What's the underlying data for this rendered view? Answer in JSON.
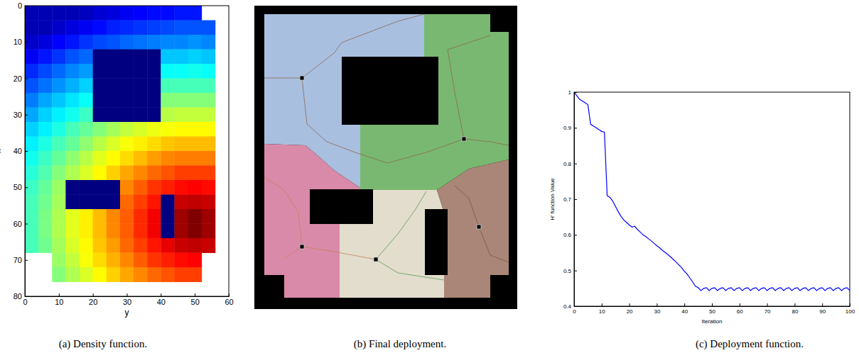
{
  "chart_data": [
    {
      "type": "heatmap",
      "title": "(a) Density function.",
      "xlabel": "y",
      "ylabel": "x",
      "xlim": [
        0,
        60
      ],
      "ylim": [
        0,
        80
      ],
      "xticks": [
        0,
        10,
        20,
        30,
        40,
        50,
        60
      ],
      "yticks": [
        0,
        10,
        20,
        30,
        40,
        50,
        60,
        70,
        80
      ],
      "x": [
        0,
        4,
        8,
        12,
        16,
        20,
        24,
        28,
        32,
        36,
        40,
        44,
        48,
        52,
        56
      ],
      "y": [
        0,
        4,
        8,
        12,
        16,
        20,
        24,
        28,
        32,
        36,
        40,
        44,
        48,
        52,
        56,
        60,
        64,
        68,
        72,
        76
      ],
      "cells": [
        [
          0.05,
          0.05,
          0.05,
          0.05,
          0.06,
          0.08,
          0.09,
          0.11,
          0.12,
          0.13,
          0.13,
          0.14,
          0.14,
          null
        ],
        [
          0.05,
          0.05,
          0.07,
          0.09,
          0.11,
          0.13,
          0.15,
          0.16,
          0.17,
          0.18,
          0.19,
          0.2,
          0.2,
          0.2
        ],
        [
          0.07,
          0.09,
          0.12,
          0.14,
          0.17,
          0.19,
          0.2,
          0.22,
          0.23,
          0.24,
          0.25,
          0.25,
          0.26,
          0.25
        ],
        [
          0.11,
          0.14,
          0.17,
          0.2,
          0.22,
          0,
          0,
          0,
          0,
          0,
          0.31,
          0.31,
          0.32,
          0.31
        ],
        [
          0.16,
          0.19,
          0.22,
          0.25,
          0.27,
          0,
          0,
          0,
          0,
          0,
          0.37,
          0.37,
          0.38,
          0.37
        ],
        [
          0.2,
          0.23,
          0.26,
          0.29,
          0.32,
          0,
          0,
          0,
          0,
          0,
          0.43,
          0.43,
          0.43,
          0.43
        ],
        [
          0.24,
          0.28,
          0.31,
          0.34,
          0.37,
          0,
          0,
          0,
          0,
          0,
          0.49,
          0.49,
          0.49,
          0.49
        ],
        [
          0.28,
          0.32,
          0.35,
          0.38,
          0.42,
          0,
          0,
          0,
          0,
          0,
          0.54,
          0.55,
          0.55,
          0.55
        ],
        [
          0.32,
          0.35,
          0.39,
          0.43,
          0.46,
          0.49,
          0.52,
          0.55,
          0.57,
          0.59,
          0.6,
          0.61,
          0.61,
          0.61
        ],
        [
          0.35,
          0.39,
          0.43,
          0.46,
          0.5,
          0.54,
          0.57,
          0.6,
          0.62,
          0.64,
          0.66,
          0.67,
          0.67,
          0.67
        ],
        [
          0.38,
          0.42,
          0.46,
          0.5,
          0.54,
          0.58,
          0.61,
          0.64,
          0.67,
          0.7,
          0.72,
          0.73,
          0.73,
          0.73
        ],
        [
          0.4,
          0.44,
          0.49,
          0.53,
          0.57,
          0.61,
          0.65,
          0.69,
          0.72,
          0.75,
          0.77,
          0.79,
          0.79,
          0.79
        ],
        [
          0.42,
          0.46,
          0.51,
          0,
          0,
          0,
          0,
          0.72,
          0.76,
          0.8,
          0.82,
          0.84,
          0.85,
          0.84
        ],
        [
          0.43,
          0.47,
          0.52,
          0,
          0,
          0,
          0,
          0.75,
          0.79,
          0.83,
          0,
          0.9,
          0.91,
          0.9
        ],
        [
          0.43,
          0.48,
          0.53,
          0.58,
          0.62,
          0.67,
          0.72,
          0.76,
          0.81,
          0.86,
          0,
          0.94,
          0.97,
          0.94
        ],
        [
          0.43,
          0.48,
          0.53,
          0.58,
          0.62,
          0.67,
          0.72,
          0.76,
          0.81,
          0.86,
          0,
          0.94,
          0.97,
          0.94
        ],
        [
          0.43,
          0.47,
          0.52,
          0.57,
          0.61,
          0.66,
          0.7,
          0.75,
          0.79,
          0.83,
          0.87,
          0.9,
          0.91,
          0.9
        ],
        [
          null,
          null,
          0.51,
          0.55,
          0.6,
          0.64,
          0.68,
          0.72,
          0.76,
          0.8,
          0.82,
          0.84,
          0.85,
          null
        ],
        [
          null,
          null,
          0.49,
          0.53,
          0.57,
          0.61,
          0.65,
          0.69,
          0.72,
          0.75,
          0.77,
          0.79,
          0.79,
          null
        ]
      ]
    },
    {
      "type": "map",
      "title": "(b) Final deployment."
    },
    {
      "type": "line",
      "title": "(c) Deployment function.",
      "xlabel": "Iteration",
      "ylabel": "H' function Value",
      "xlim": [
        0,
        100
      ],
      "ylim": [
        0.4,
        1
      ],
      "xticks": [
        0,
        10,
        20,
        30,
        40,
        50,
        60,
        70,
        80,
        90,
        100
      ],
      "yticks": [
        0.4,
        0.5,
        0.6,
        0.7,
        0.8,
        0.9,
        1
      ],
      "color": "#0000ff",
      "x": [
        0,
        1,
        2,
        3,
        4,
        5,
        6,
        7,
        8,
        9,
        10,
        11,
        12,
        13,
        14,
        15,
        16,
        17,
        18,
        19,
        20,
        21,
        22,
        23,
        24,
        25,
        26,
        27,
        28,
        29,
        30,
        31,
        32,
        33,
        34,
        35,
        36,
        37,
        38,
        39,
        40,
        41,
        42,
        43,
        44,
        45,
        46,
        47,
        48,
        49,
        50,
        51,
        52,
        53,
        54,
        55,
        56,
        57,
        58,
        59,
        60,
        61,
        62,
        63,
        64,
        65,
        66,
        67,
        68,
        69,
        70,
        71,
        72,
        73,
        74,
        75,
        76,
        77,
        78,
        79,
        80,
        81,
        82,
        83,
        84,
        85,
        86,
        87,
        88,
        89,
        90,
        91,
        92,
        93,
        94,
        95,
        96,
        97,
        98,
        99,
        100
      ],
      "values": [
        1,
        0.99,
        0.98,
        0.975,
        0.97,
        0.965,
        0.91,
        0.905,
        0.9,
        0.895,
        0.89,
        0.888,
        0.71,
        0.705,
        0.695,
        0.68,
        0.665,
        0.652,
        0.642,
        0.635,
        0.628,
        0.622,
        0.624,
        0.615,
        0.608,
        0.6,
        0.595,
        0.589,
        0.583,
        0.576,
        0.57,
        0.564,
        0.557,
        0.551,
        0.545,
        0.538,
        0.531,
        0.524,
        0.516,
        0.508,
        0.498,
        0.49,
        0.479,
        0.468,
        0.456,
        0.452,
        0.444,
        0.45,
        0.452,
        0.444,
        0.45,
        0.452,
        0.444,
        0.45,
        0.452,
        0.444,
        0.45,
        0.452,
        0.444,
        0.45,
        0.452,
        0.444,
        0.45,
        0.452,
        0.444,
        0.45,
        0.452,
        0.444,
        0.45,
        0.452,
        0.444,
        0.45,
        0.452,
        0.444,
        0.45,
        0.452,
        0.444,
        0.45,
        0.452,
        0.444,
        0.45,
        0.452,
        0.444,
        0.45,
        0.452,
        0.444,
        0.45,
        0.452,
        0.444,
        0.45,
        0.452,
        0.444,
        0.45,
        0.452,
        0.444,
        0.45,
        0.452,
        0.444,
        0.45,
        0.452,
        0.444
      ]
    }
  ]
}
